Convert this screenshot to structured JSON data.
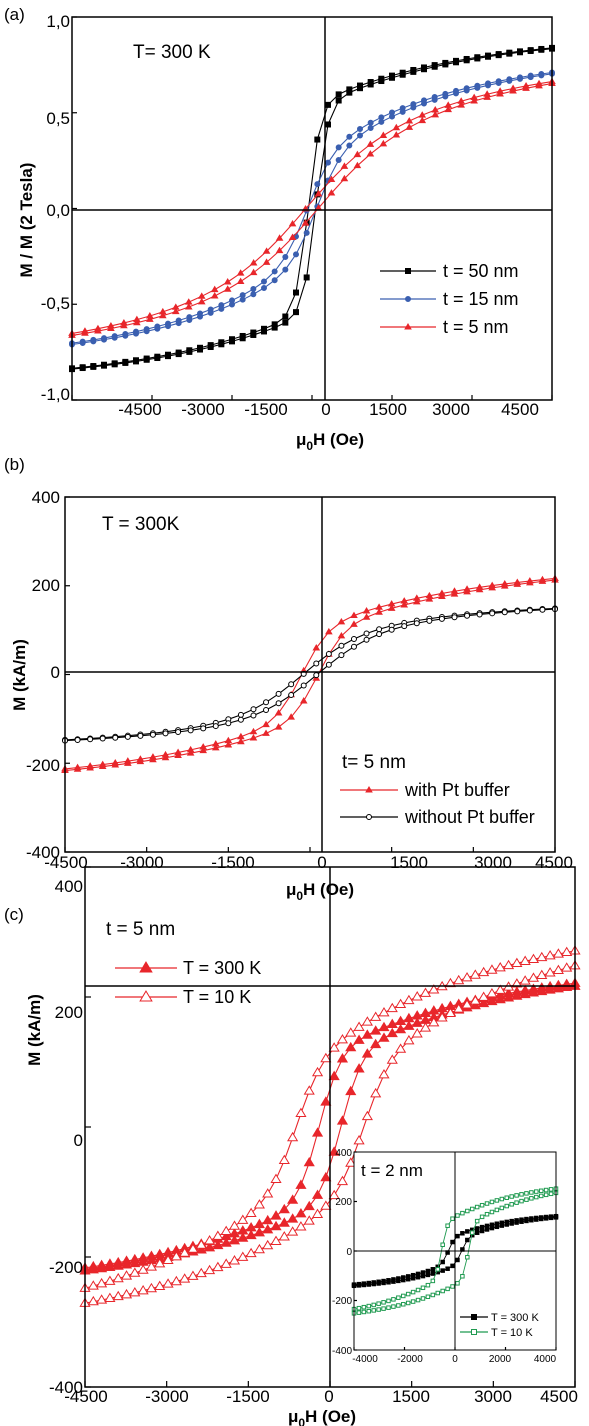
{
  "colors": {
    "black": "#000000",
    "blue": "#3a5fb0",
    "red": "#e8262b",
    "green": "#1f9a50"
  },
  "chart_data": [
    {
      "panel": "(a)",
      "type": "line",
      "title": "",
      "annotation": "T= 300 K",
      "xlabel": "μ0H (Oe)",
      "ylabel": "M / M (2 Tesla)",
      "xlim": [
        -4500,
        4500
      ],
      "ylim": [
        -1.0,
        1.0
      ],
      "x_ticks": [
        "-4500",
        "-3000",
        "-1500",
        "0",
        "1500",
        "3000",
        "4500"
      ],
      "y_ticks": [
        "-1,0",
        "-0,5",
        "0,0",
        "0,5",
        "1,0"
      ],
      "legend_position": "center-right",
      "series": [
        {
          "name": "t = 50 nm",
          "color": "black",
          "marker": "square",
          "points": 46,
          "Ms": 0.99,
          "Hc": 70,
          "w": 230,
          "chi": 0.55,
          "ap": 2500,
          "bp": 1.08
        },
        {
          "name": "t = 15 nm",
          "color": "blue",
          "marker": "circle",
          "points": 46,
          "Ms": 0.92,
          "Hc": 85,
          "w": 500,
          "chi": 0.3,
          "ap": 2500,
          "bp": 1.03
        },
        {
          "name": "t =  5 nm",
          "color": "red",
          "marker": "triangle",
          "points": 38,
          "Ms": 0.9,
          "Hc": 115,
          "w": 1150,
          "chi": 0.18,
          "ap": 2500,
          "bp": 1.02
        }
      ]
    },
    {
      "panel": "(b)",
      "type": "line",
      "title": "",
      "annotation": "T = 300K",
      "xlabel": "μ0H (Oe)",
      "ylabel": "M (kA/m)",
      "xlim": [
        -4500,
        4500
      ],
      "ylim": [
        -400,
        400
      ],
      "x_ticks": [
        "-4500",
        "-3000",
        "-1500",
        "0",
        "1500",
        "3000",
        "4500"
      ],
      "y_ticks": [
        "-400",
        "-200",
        "0",
        "200",
        "400"
      ],
      "legend_title": "t= 5 nm",
      "legend_position": "bottom-right",
      "series": [
        {
          "name": "with Pt buffer",
          "color": "red",
          "marker": "triangle",
          "points": 40,
          "Ms": 285,
          "Hc": 150,
          "w": 500,
          "chi": 0.36,
          "ap": 3000,
          "bp": 1.04
        },
        {
          "name": "without Pt buffer",
          "color": "black",
          "marker": "open-circle",
          "points": 40,
          "Ms": 180,
          "Hc": 130,
          "w": 1000,
          "chi": 0.4,
          "ap": 2200,
          "bp": 1.02
        }
      ]
    },
    {
      "panel": "(c)",
      "type": "line",
      "title": "",
      "annotation": "t = 5 nm",
      "xlabel": "μ0H (Oe)",
      "ylabel": "M (kA/m)",
      "xlim": [
        -4500,
        4500
      ],
      "ylim": [
        -400,
        400
      ],
      "x_ticks": [
        "-4500",
        "-3000",
        "-1500",
        "0",
        "1500",
        "3000",
        "4500"
      ],
      "y_ticks": [
        "-400",
        "-200",
        "0",
        "200",
        "400"
      ],
      "legend_position": "top-left",
      "series": [
        {
          "name": "T = 300 K",
          "color": "red",
          "marker": "triangle",
          "points": 60,
          "Ms": 285,
          "Hc": 200,
          "w": 400,
          "chi": 0.4,
          "ap": 3000,
          "bp": 1.04
        },
        {
          "name": "T = 10 K",
          "color": "red",
          "marker": "open-triangle",
          "points": 60,
          "Ms": 370,
          "Hc": 620,
          "w": 500,
          "chi": 0.26,
          "ap": 3200,
          "bp": 1.02
        }
      ],
      "inset": {
        "annotation": "t = 2 nm",
        "xlim": [
          -4500,
          4500
        ],
        "ylim": [
          -400,
          400
        ],
        "x_ticks": [
          "-4000",
          "-2000",
          "0",
          "2000",
          "4000"
        ],
        "y_ticks": [
          "-400",
          "-200",
          "0",
          "200",
          "400"
        ],
        "legend_position": "bottom-right",
        "series": [
          {
            "name": "T = 300 K",
            "color": "black",
            "marker": "square",
            "points": 42,
            "Ms": 180,
            "Hc": 300,
            "w": 300,
            "chi": 0.3,
            "ap": 2500,
            "bp": 1.03
          },
          {
            "name": "T = 10 K",
            "color": "green",
            "marker": "open-square",
            "points": 42,
            "Ms": 325,
            "Hc": 600,
            "w": 250,
            "chi": 0.35,
            "ap": 3000,
            "bp": 1.03
          }
        ]
      }
    }
  ]
}
